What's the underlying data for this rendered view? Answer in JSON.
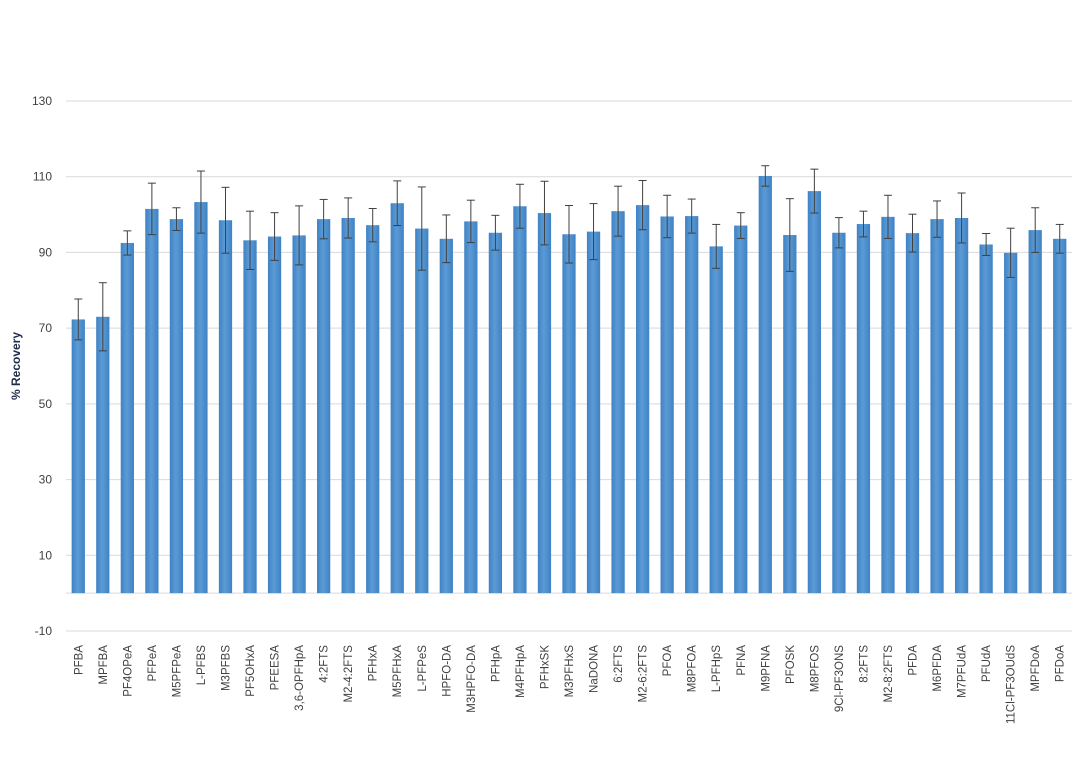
{
  "chart_data": {
    "type": "bar",
    "title": "",
    "xlabel": "",
    "ylabel": "% Recovery",
    "ylim": [
      -10,
      130
    ],
    "yticks": [
      -10,
      10,
      30,
      50,
      70,
      90,
      110,
      130
    ],
    "grid": true,
    "legend": "none",
    "colors": {
      "bar": "#5b9bd5",
      "bar_dark": "#3f82c4",
      "error": "#404040"
    },
    "categories": [
      "PFBA",
      "MPFBA",
      "PF4OPeA",
      "PFPeA",
      "M5PFPeA",
      "L-PFBS",
      "M3PFBS",
      "PF5OHxA",
      "PFEESA",
      "3,6-OPFHpA",
      "4:2FTS",
      "M2-4:2FTS",
      "PFHxA",
      "M5PFHxA",
      "L-PFPeS",
      "HPFO-DA",
      "M3HPFO-DA",
      "PFHpA",
      "M4PFHpA",
      "PFHxSK",
      "M3PFHxS",
      "NaDONA",
      "6:2FTS",
      "M2-6:2FTS",
      "PFOA",
      "M8PFOA",
      "L-PFHpS",
      "PFNA",
      "M9PFNA",
      "PFOSK",
      "M8PFOS",
      "9Cl-PF3ONS",
      "8:2FTS",
      "M2-8:2FTS",
      "PFDA",
      "M6PFDA",
      "M7PFUdA",
      "PFUdA",
      "11Cl-PF3OUdS",
      "MPFDoA",
      "PFDoA"
    ],
    "values": [
      72.3,
      73.0,
      92.5,
      101.5,
      98.8,
      103.3,
      98.5,
      93.2,
      94.2,
      94.5,
      98.8,
      99.1,
      97.2,
      103.0,
      96.3,
      93.6,
      98.2,
      95.2,
      102.2,
      100.4,
      94.8,
      95.5,
      100.9,
      102.5,
      99.5,
      99.6,
      91.6,
      97.1,
      110.2,
      94.6,
      106.2,
      95.2,
      97.5,
      99.4,
      95.1,
      98.8,
      99.1,
      92.1,
      89.9,
      95.9,
      93.6
    ],
    "errors": [
      5.4,
      9.0,
      3.2,
      6.8,
      3.0,
      8.2,
      8.7,
      7.7,
      6.3,
      7.8,
      5.2,
      5.3,
      4.4,
      5.9,
      11.0,
      6.3,
      5.6,
      4.6,
      5.8,
      8.4,
      7.6,
      7.4,
      6.6,
      6.5,
      5.6,
      4.5,
      5.8,
      3.4,
      2.7,
      9.6,
      5.8,
      4.0,
      3.4,
      5.7,
      5.0,
      4.8,
      6.6,
      2.9,
      6.5,
      5.9,
      3.8
    ]
  }
}
